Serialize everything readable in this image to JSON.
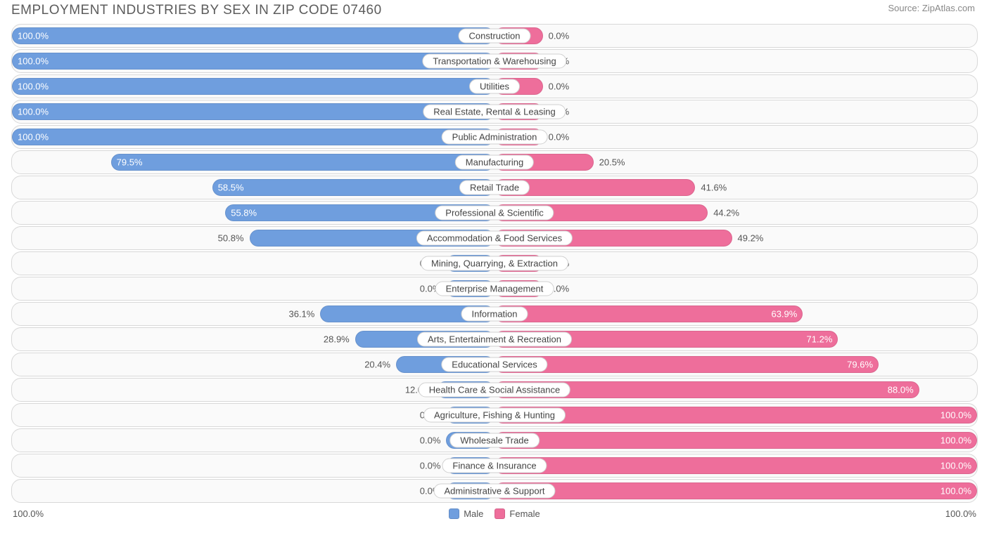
{
  "title": "EMPLOYMENT INDUSTRIES BY SEX IN ZIP CODE 07460",
  "source": "Source: ZipAtlas.com",
  "colors": {
    "male": "#6f9ede",
    "female": "#ee6e9b",
    "male_label": "Male",
    "female_label": "Female",
    "row_border": "#d8d8d8",
    "row_bg": "#fafafa",
    "text": "#555555",
    "label_bg": "#ffffff"
  },
  "axis": {
    "left": "100.0%",
    "right": "100.0%"
  },
  "center_fill_pct": 10,
  "rows": [
    {
      "label": "Construction",
      "male_pct": 100.0,
      "female_pct": 0.0,
      "male_text": "100.0%",
      "female_text": "0.0%"
    },
    {
      "label": "Transportation & Warehousing",
      "male_pct": 100.0,
      "female_pct": 0.0,
      "male_text": "100.0%",
      "female_text": "0.0%"
    },
    {
      "label": "Utilities",
      "male_pct": 100.0,
      "female_pct": 0.0,
      "male_text": "100.0%",
      "female_text": "0.0%"
    },
    {
      "label": "Real Estate, Rental & Leasing",
      "male_pct": 100.0,
      "female_pct": 0.0,
      "male_text": "100.0%",
      "female_text": "0.0%"
    },
    {
      "label": "Public Administration",
      "male_pct": 100.0,
      "female_pct": 0.0,
      "male_text": "100.0%",
      "female_text": "0.0%"
    },
    {
      "label": "Manufacturing",
      "male_pct": 79.5,
      "female_pct": 20.5,
      "male_text": "79.5%",
      "female_text": "20.5%"
    },
    {
      "label": "Retail Trade",
      "male_pct": 58.5,
      "female_pct": 41.6,
      "male_text": "58.5%",
      "female_text": "41.6%"
    },
    {
      "label": "Professional & Scientific",
      "male_pct": 55.8,
      "female_pct": 44.2,
      "male_text": "55.8%",
      "female_text": "44.2%"
    },
    {
      "label": "Accommodation & Food Services",
      "male_pct": 50.8,
      "female_pct": 49.2,
      "male_text": "50.8%",
      "female_text": "49.2%"
    },
    {
      "label": "Mining, Quarrying, & Extraction",
      "male_pct": 0.0,
      "female_pct": 0.0,
      "male_text": "0.0%",
      "female_text": "0.0%"
    },
    {
      "label": "Enterprise Management",
      "male_pct": 0.0,
      "female_pct": 0.0,
      "male_text": "0.0%",
      "female_text": "0.0%"
    },
    {
      "label": "Information",
      "male_pct": 36.1,
      "female_pct": 63.9,
      "male_text": "36.1%",
      "female_text": "63.9%"
    },
    {
      "label": "Arts, Entertainment & Recreation",
      "male_pct": 28.9,
      "female_pct": 71.2,
      "male_text": "28.9%",
      "female_text": "71.2%"
    },
    {
      "label": "Educational Services",
      "male_pct": 20.4,
      "female_pct": 79.6,
      "male_text": "20.4%",
      "female_text": "79.6%"
    },
    {
      "label": "Health Care & Social Assistance",
      "male_pct": 12.0,
      "female_pct": 88.0,
      "male_text": "12.0%",
      "female_text": "88.0%"
    },
    {
      "label": "Agriculture, Fishing & Hunting",
      "male_pct": 0.0,
      "female_pct": 100.0,
      "male_text": "0.0%",
      "female_text": "100.0%"
    },
    {
      "label": "Wholesale Trade",
      "male_pct": 0.0,
      "female_pct": 100.0,
      "male_text": "0.0%",
      "female_text": "100.0%"
    },
    {
      "label": "Finance & Insurance",
      "male_pct": 0.0,
      "female_pct": 100.0,
      "male_text": "0.0%",
      "female_text": "100.0%"
    },
    {
      "label": "Administrative & Support",
      "male_pct": 0.0,
      "female_pct": 100.0,
      "male_text": "0.0%",
      "female_text": "100.0%"
    }
  ]
}
